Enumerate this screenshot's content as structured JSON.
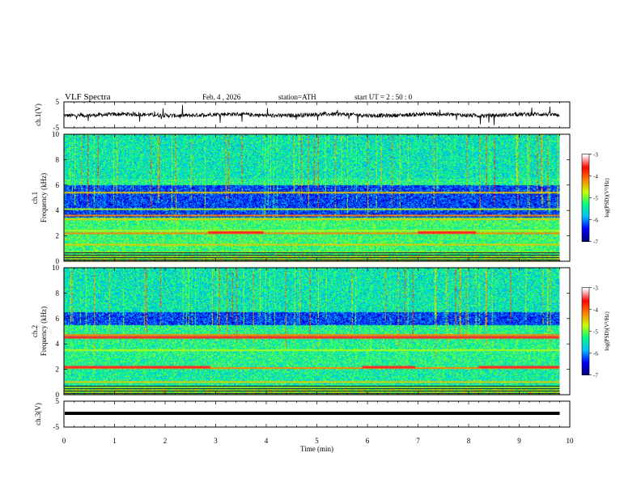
{
  "header": {
    "title": "VLF  Spectra",
    "date": "Feb. 4  , 2026",
    "station": "station=ATH",
    "start_time": "start  UT  =   2  : 50 : 0"
  },
  "chart_data": [
    {
      "type": "line",
      "name": "ch1-waveform",
      "ylabel": "ch.1(V)",
      "ylim": [
        -5,
        5
      ],
      "yticks": [
        "5",
        "-5"
      ],
      "xlim": [
        0,
        10
      ],
      "note": "noisy baseline near 0 V with frequent spikes"
    },
    {
      "type": "heatmap",
      "name": "ch1-spectrogram",
      "ylabel": "ch.1",
      "ylabel2": "Frequency (kHz)",
      "ylim": [
        0,
        10
      ],
      "yticks": [
        "0",
        "2",
        "4",
        "6",
        "8",
        "10"
      ],
      "xlim": [
        0,
        10
      ],
      "colorbar": {
        "label": "log(PSD)(V²/Hz)",
        "range": [
          -7,
          -3
        ],
        "ticks": [
          "-3",
          "-4",
          "-5",
          "-6",
          "-7"
        ]
      },
      "bright_bands_khz": [
        0.7,
        1.3,
        2.2,
        2.4,
        3.3,
        3.6,
        4.1,
        5.4
      ],
      "dark_band_khz": [
        3.0,
        6.0
      ]
    },
    {
      "type": "heatmap",
      "name": "ch2-spectrogram",
      "ylabel": "ch.2",
      "ylabel2": "Frequency (kHz)",
      "ylim": [
        0,
        10
      ],
      "yticks": [
        "0",
        "2",
        "4",
        "6",
        "8",
        "10"
      ],
      "xlim": [
        0,
        10
      ],
      "colorbar": {
        "label": "log(PSD)(V²/Hz)",
        "range": [
          -7,
          -3
        ],
        "ticks": [
          "-3",
          "-4",
          "-5",
          "-6",
          "-7"
        ]
      },
      "bright_bands_khz": [
        0.6,
        1.0,
        2.1,
        3.5,
        4.5,
        4.7
      ],
      "dark_band_khz": [
        5.5,
        6.5
      ]
    },
    {
      "type": "line",
      "name": "ch3-waveform",
      "ylabel": "ch.3(V)",
      "ylim": [
        -5,
        5
      ],
      "yticks": [
        "5",
        "-5"
      ],
      "xlim": [
        0,
        10
      ],
      "constant_value": 0,
      "note": "flat thick line"
    }
  ],
  "xaxis": {
    "label": "Time  (min)",
    "ticks": [
      "0",
      "1",
      "2",
      "3",
      "4",
      "5",
      "6",
      "7",
      "8",
      "9",
      "10"
    ],
    "data_end": 9.8
  },
  "colors": {
    "background": "#ffffff",
    "axis": "#000000",
    "colormap": [
      "#000080",
      "#0000ff",
      "#00bfff",
      "#00ff80",
      "#c8ff00",
      "#ff8000",
      "#ff0000",
      "#ffffff"
    ]
  }
}
